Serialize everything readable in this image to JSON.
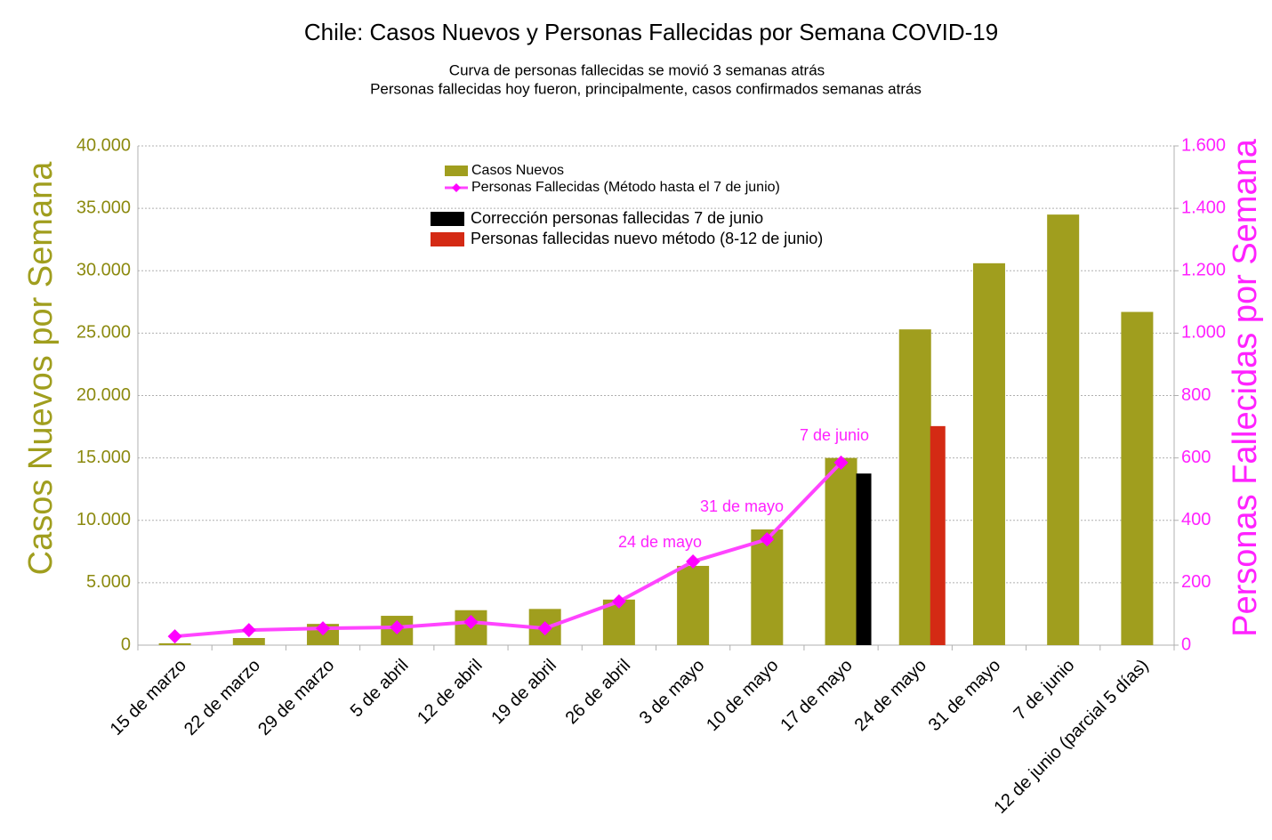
{
  "chart_data": {
    "type": "bar",
    "title": "Chile: Casos Nuevos y Personas Fallecidas por Semana COVID-19",
    "subtitle": [
      "Curva de personas fallecidas se movió 3 semanas atrás",
      "Personas fallecidas hoy fueron, principalmente, casos confirmados semanas atrás"
    ],
    "y_label": "Casos Nuevos por Semana",
    "y2_label": "Personas Fallecidas por Semana",
    "categories": [
      "15 de marzo",
      "22 de marzo",
      "29 de marzo",
      "5 de abril",
      "12 de abril",
      "19 de abril",
      "26 de abril",
      "3 de mayo",
      "10 de mayo",
      "17 de mayo",
      "24 de mayo",
      "31 de mayo",
      "7 de junio",
      "12 de junio (parcial 5 días)"
    ],
    "series": [
      {
        "name": "Casos Nuevos",
        "type": "bar",
        "axis": "y",
        "color": "#a09e1e",
        "values": [
          150,
          570,
          1700,
          2350,
          2800,
          2900,
          3650,
          6350,
          9270,
          15000,
          25300,
          30600,
          34500,
          26700
        ]
      },
      {
        "name": "Personas Fallecidas (Método hasta el 7 de junio)",
        "type": "line",
        "axis": "y2",
        "color": "#ff44ff",
        "values": [
          28,
          48,
          54,
          57,
          74,
          54,
          140,
          268,
          339,
          585,
          null,
          null,
          null,
          null
        ]
      },
      {
        "name": "Corrección personas fallecidas 7 de junio",
        "type": "bar",
        "axis": "y2",
        "color": "#000000",
        "values": [
          null,
          null,
          null,
          null,
          null,
          null,
          null,
          null,
          null,
          550,
          null,
          null,
          null,
          null
        ]
      },
      {
        "name": "Personas fallecidas nuevo método (8-12 de junio)",
        "type": "bar",
        "axis": "y2",
        "color": "#d42a14",
        "values": [
          null,
          null,
          null,
          null,
          null,
          null,
          null,
          null,
          null,
          null,
          702,
          null,
          null,
          null
        ]
      }
    ],
    "annotations": [
      "24 de mayo",
      "31 de mayo",
      "7 de junio"
    ],
    "ylim": [
      0,
      40000
    ],
    "yticks": [
      0,
      {
        "value": 5000,
        "label": "5.000"
      },
      {
        "value": 10000,
        "label": "10.000"
      },
      {
        "value": 15000,
        "label": "15.000"
      },
      {
        "value": 20000,
        "label": "20.000"
      },
      {
        "value": 25000,
        "label": "25.000"
      },
      {
        "value": 30000,
        "label": "30.000"
      },
      {
        "value": 35000,
        "label": "35.000"
      },
      {
        "value": 40000,
        "label": "40.000"
      }
    ],
    "y2lim": [
      0,
      1600
    ],
    "y2ticks": [
      0,
      200,
      400,
      600,
      800,
      {
        "value": 1000,
        "label": "1.000"
      },
      {
        "value": 1200,
        "label": "1.200"
      },
      {
        "value": 1400,
        "label": "1.400"
      },
      {
        "value": 1600,
        "label": "1.600"
      }
    ],
    "grid": true
  }
}
